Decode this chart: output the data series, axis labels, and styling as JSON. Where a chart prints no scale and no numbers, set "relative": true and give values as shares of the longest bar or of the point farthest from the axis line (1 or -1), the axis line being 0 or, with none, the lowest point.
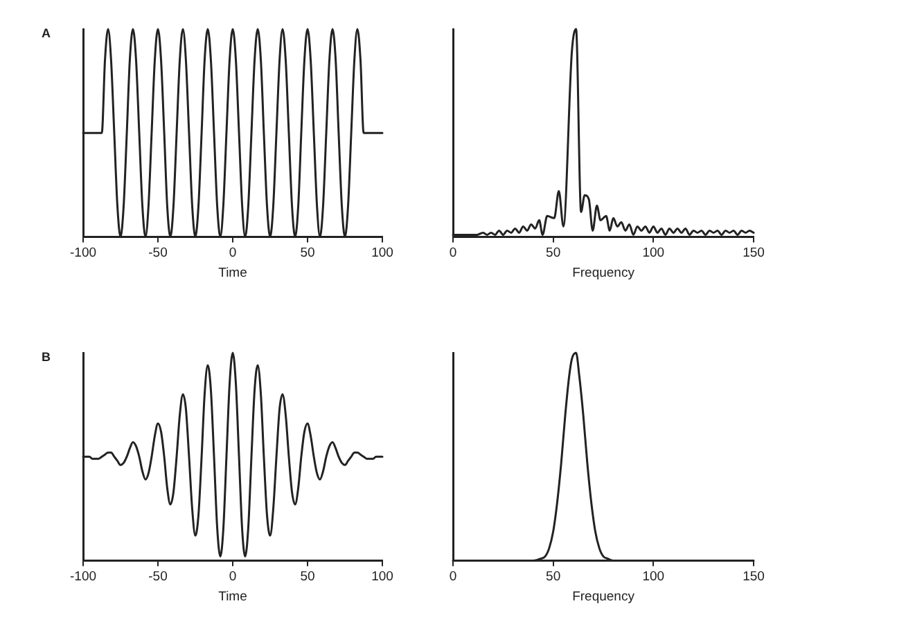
{
  "chart_data": [
    {
      "type": "line",
      "title": "A",
      "xlabel": "Time",
      "relative": true,
      "marker": "none",
      "color": "#222222",
      "xlim": [
        -100,
        100
      ],
      "xticks": [
        -100,
        -50,
        0,
        50,
        100
      ],
      "x": [
        -100,
        -87.5,
        -85.4,
        -83.3,
        -81.3,
        -79.2,
        -77.1,
        -75,
        -72.9,
        -70.8,
        -68.8,
        -66.7,
        -64.6,
        -62.5,
        -60.4,
        -58.3,
        -56.3,
        -54.2,
        -52.1,
        -50,
        -47.9,
        -45.8,
        -43.8,
        -41.7,
        -39.6,
        -37.5,
        -35.4,
        -33.3,
        -31.3,
        -29.2,
        -27.1,
        -25,
        -22.9,
        -20.8,
        -18.8,
        -16.7,
        -14.6,
        -12.5,
        -10.4,
        -8.3,
        -6.3,
        -4.2,
        -2.1,
        0,
        2.1,
        4.2,
        6.3,
        8.3,
        10.4,
        12.5,
        14.6,
        16.7,
        18.8,
        20.8,
        22.9,
        25,
        27.1,
        29.2,
        31.3,
        33.3,
        35.4,
        37.5,
        39.6,
        41.7,
        43.8,
        45.8,
        47.9,
        50,
        52.1,
        54.2,
        56.3,
        58.3,
        60.4,
        62.5,
        64.6,
        66.7,
        68.8,
        70.8,
        72.9,
        75,
        77.1,
        79.2,
        81.3,
        83.3,
        85.4,
        87.5,
        100
      ],
      "values": [
        0.5,
        0.5,
        0.85,
        1,
        0.85,
        0.5,
        0.15,
        0,
        0.15,
        0.5,
        0.85,
        1,
        0.85,
        0.5,
        0.15,
        0,
        0.15,
        0.5,
        0.85,
        1,
        0.85,
        0.5,
        0.15,
        0,
        0.15,
        0.5,
        0.85,
        1,
        0.85,
        0.5,
        0.15,
        0,
        0.15,
        0.5,
        0.85,
        1,
        0.85,
        0.5,
        0.15,
        0,
        0.15,
        0.5,
        0.85,
        1,
        0.85,
        0.5,
        0.15,
        0,
        0.15,
        0.5,
        0.85,
        1,
        0.85,
        0.5,
        0.15,
        0,
        0.15,
        0.5,
        0.85,
        1,
        0.85,
        0.5,
        0.15,
        0,
        0.15,
        0.5,
        0.85,
        1,
        0.85,
        0.5,
        0.15,
        0,
        0.15,
        0.5,
        0.85,
        1,
        0.85,
        0.5,
        0.15,
        0,
        0.15,
        0.5,
        0.85,
        1,
        0.85,
        0.5,
        0.5
      ]
    },
    {
      "type": "line",
      "xlabel": "Frequency",
      "relative": true,
      "marker": "none",
      "color": "#222222",
      "xlim": [
        0,
        150
      ],
      "xticks": [
        0,
        50,
        100,
        150
      ],
      "x": [
        0,
        3,
        6,
        9,
        12,
        15,
        17,
        19,
        21,
        23,
        25,
        27,
        29,
        31,
        33,
        35,
        37,
        39,
        41,
        43,
        44.7,
        47,
        50.5,
        52.8,
        55.1,
        59.3,
        61.4,
        63.9,
        65.7,
        67.8,
        69.7,
        71.8,
        73.6,
        76.4,
        78.2,
        80,
        82,
        84,
        86,
        88,
        90,
        92,
        94,
        96,
        98,
        100,
        102,
        104,
        106,
        108,
        110,
        112,
        114,
        116,
        118,
        120,
        122,
        124,
        126,
        128,
        130,
        132,
        134,
        136,
        138,
        140,
        142,
        144,
        146,
        148,
        150
      ],
      "values": [
        0.01,
        0.01,
        0.01,
        0.01,
        0.01,
        0.02,
        0.01,
        0.02,
        0.01,
        0.03,
        0.01,
        0.03,
        0.02,
        0.04,
        0.02,
        0.05,
        0.03,
        0.06,
        0.04,
        0.08,
        0.01,
        0.1,
        0.09,
        0.22,
        0.05,
        0.89,
        1,
        0.12,
        0.2,
        0.18,
        0.03,
        0.15,
        0.08,
        0.1,
        0.03,
        0.09,
        0.05,
        0.07,
        0.03,
        0.06,
        0.01,
        0.05,
        0.03,
        0.05,
        0.02,
        0.05,
        0.02,
        0.04,
        0.01,
        0.04,
        0.02,
        0.04,
        0.02,
        0.04,
        0.01,
        0.03,
        0.02,
        0.03,
        0.01,
        0.03,
        0.02,
        0.03,
        0.01,
        0.03,
        0.02,
        0.03,
        0.01,
        0.03,
        0.02,
        0.03,
        0.02
      ]
    },
    {
      "type": "line",
      "title": "B",
      "xlabel": "Time",
      "relative": true,
      "marker": "none",
      "color": "#222222",
      "xlim": [
        -100,
        100
      ],
      "xticks": [
        -100,
        -50,
        0,
        50,
        100
      ],
      "x": [
        -100,
        -97.9,
        -95.8,
        -93.8,
        -91.7,
        -89.6,
        -87.5,
        -85.4,
        -83.3,
        -81.3,
        -79.2,
        -77.1,
        -75,
        -72.9,
        -70.8,
        -68.8,
        -66.7,
        -64.6,
        -62.5,
        -60.4,
        -58.3,
        -56.3,
        -54.2,
        -52.1,
        -50,
        -47.9,
        -45.8,
        -43.8,
        -41.7,
        -39.6,
        -37.5,
        -35.4,
        -33.3,
        -31.3,
        -29.2,
        -27.1,
        -25,
        -22.9,
        -20.8,
        -18.8,
        -16.7,
        -14.6,
        -12.5,
        -10.4,
        -8.3,
        -6.3,
        -4.2,
        -2.1,
        0,
        2.1,
        4.2,
        6.3,
        8.3,
        10.4,
        12.5,
        14.6,
        16.7,
        18.8,
        20.8,
        22.9,
        25,
        27.1,
        29.2,
        31.3,
        33.3,
        35.4,
        37.5,
        39.6,
        41.7,
        43.8,
        45.8,
        47.9,
        50,
        52.1,
        54.2,
        56.3,
        58.3,
        60.4,
        62.5,
        64.6,
        66.7,
        68.8,
        70.8,
        72.9,
        75,
        77.1,
        79.2,
        81.3,
        83.3,
        85.4,
        87.5,
        89.6,
        91.7,
        93.8,
        95.8,
        97.9,
        100
      ],
      "values": [
        0.5,
        0.5,
        0.5,
        0.49,
        0.49,
        0.49,
        0.5,
        0.51,
        0.52,
        0.52,
        0.5,
        0.48,
        0.46,
        0.47,
        0.5,
        0.54,
        0.57,
        0.55,
        0.5,
        0.43,
        0.39,
        0.42,
        0.5,
        0.6,
        0.66,
        0.62,
        0.5,
        0.35,
        0.27,
        0.33,
        0.5,
        0.7,
        0.8,
        0.73,
        0.5,
        0.25,
        0.12,
        0.22,
        0.5,
        0.8,
        0.94,
        0.82,
        0.5,
        0.16,
        0.02,
        0.15,
        0.5,
        0.85,
        1,
        0.85,
        0.5,
        0.15,
        0.02,
        0.16,
        0.5,
        0.82,
        0.94,
        0.8,
        0.5,
        0.22,
        0.12,
        0.25,
        0.5,
        0.73,
        0.8,
        0.7,
        0.5,
        0.33,
        0.27,
        0.35,
        0.5,
        0.62,
        0.66,
        0.6,
        0.5,
        0.42,
        0.39,
        0.43,
        0.5,
        0.55,
        0.57,
        0.54,
        0.5,
        0.47,
        0.46,
        0.48,
        0.5,
        0.52,
        0.52,
        0.51,
        0.5,
        0.49,
        0.49,
        0.49,
        0.5,
        0.5,
        0.5
      ]
    },
    {
      "type": "line",
      "xlabel": "Frequency",
      "relative": true,
      "marker": "none",
      "color": "#222222",
      "xlim": [
        0,
        150
      ],
      "xticks": [
        0,
        50,
        100,
        150
      ],
      "x": [
        0,
        40,
        44,
        46,
        48,
        50,
        52,
        54,
        56,
        58,
        59.3,
        61.4,
        63,
        65,
        67,
        69,
        71,
        73,
        75,
        77,
        80,
        150
      ],
      "values": [
        0,
        0,
        0.01,
        0.02,
        0.06,
        0.14,
        0.28,
        0.47,
        0.7,
        0.89,
        0.97,
        1,
        0.89,
        0.7,
        0.47,
        0.28,
        0.14,
        0.06,
        0.02,
        0.01,
        0,
        0
      ]
    }
  ]
}
